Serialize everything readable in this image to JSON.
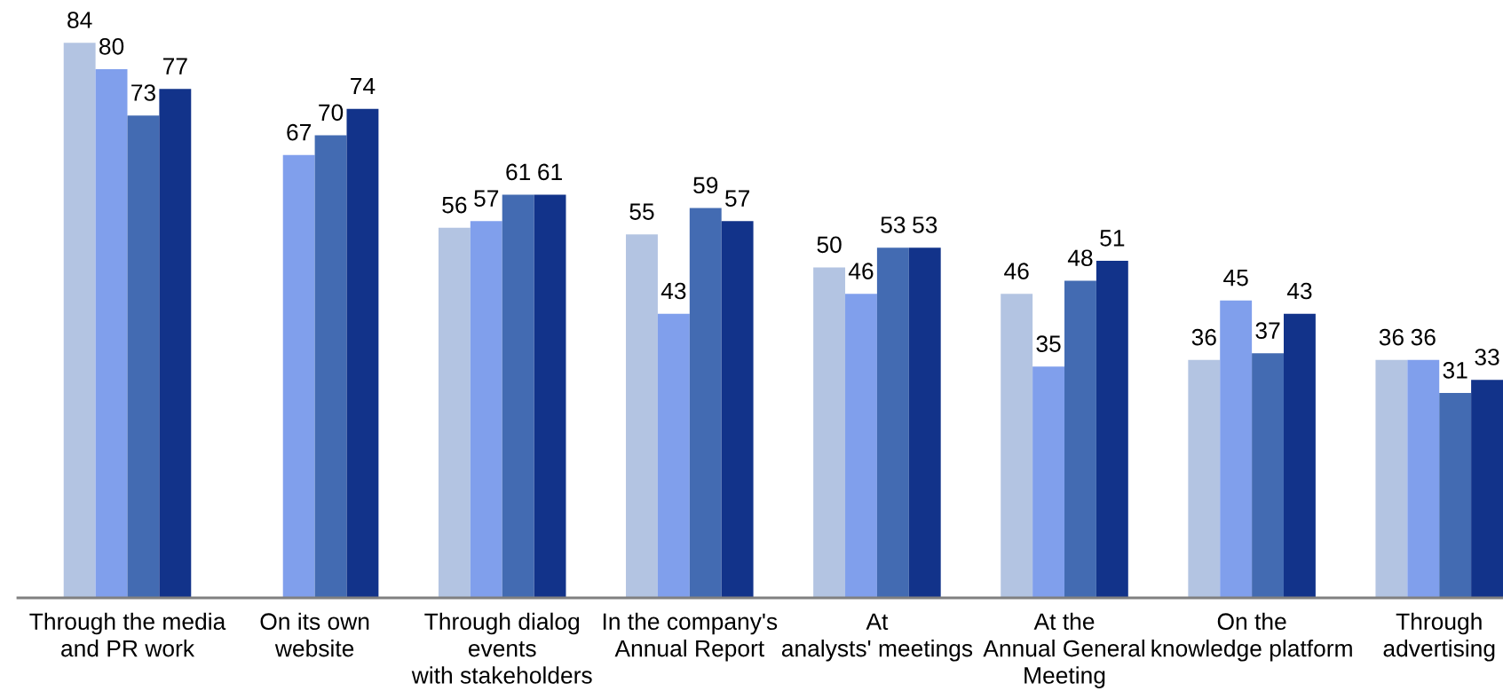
{
  "chart_data": {
    "type": "bar",
    "categories": [
      "Through the media\nand PR work",
      "On its own\nwebsite",
      "Through dialog\nevents\nwith stakeholders",
      "In the company's\nAnnual Report",
      "At\nanalysts' meetings",
      "At the\nAnnual General\nMeeting",
      "On the\nknowledge platform",
      "Through\nadvertising"
    ],
    "series": [
      {
        "color": "#b3c4e2",
        "values": [
          84,
          null,
          56,
          55,
          50,
          46,
          36,
          36
        ]
      },
      {
        "color": "#809fec",
        "values": [
          80,
          67,
          57,
          43,
          46,
          35,
          45,
          36
        ]
      },
      {
        "color": "#436bb2",
        "values": [
          73,
          70,
          61,
          59,
          53,
          48,
          37,
          31
        ]
      },
      {
        "color": "#12338a",
        "values": [
          77,
          74,
          61,
          57,
          53,
          51,
          43,
          33
        ]
      }
    ],
    "data_labels": true,
    "tick_labels": "x"
  }
}
